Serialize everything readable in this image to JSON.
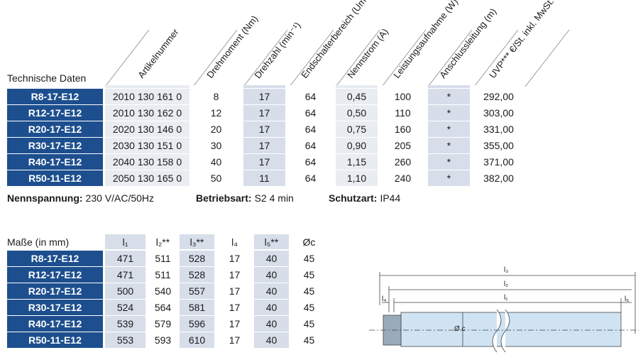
{
  "table1": {
    "title": "Technische Daten",
    "headers": [
      "Artikelnummer",
      "Drehmoment (Nm)",
      "Drehzahl (min⁻¹)",
      "Endschalterbereich (Umdrehungen)",
      "Nennstrom (A)",
      "Leistungsaufnahme (W)",
      "Anschlussleitung (m)",
      "UVP*** €/St. inkl. MwSt."
    ],
    "rows": [
      [
        "R8-17-E12",
        "2010 130 161 0",
        "8",
        "17",
        "64",
        "0,45",
        "100",
        "*",
        "292,00"
      ],
      [
        "R12-17-E12",
        "2010 130 162 0",
        "12",
        "17",
        "64",
        "0,50",
        "110",
        "*",
        "303,00"
      ],
      [
        "R20-17-E12",
        "2020 130 146 0",
        "20",
        "17",
        "64",
        "0,75",
        "160",
        "*",
        "331,00"
      ],
      [
        "R30-17-E12",
        "2030 130 151 0",
        "30",
        "17",
        "64",
        "0,90",
        "205",
        "*",
        "355,00"
      ],
      [
        "R40-17-E12",
        "2040 130 158 0",
        "40",
        "17",
        "64",
        "1,15",
        "260",
        "*",
        "371,00"
      ],
      [
        "R50-11-E12",
        "2050 130 165 0",
        "50",
        "11",
        "64",
        "1,10",
        "240",
        "*",
        "382,00"
      ]
    ]
  },
  "notes": [
    {
      "label": "Nennspannung:",
      "value": "230 V/AC/50Hz"
    },
    {
      "label": "Betriebsart:",
      "value": "S2 4 min"
    },
    {
      "label": "Schutzart:",
      "value": "IP44"
    }
  ],
  "table2": {
    "title": "Maße (in mm)",
    "headers": [
      "l₁",
      "l₂**",
      "l₃**",
      "l₄",
      "l₅**",
      "Øc"
    ],
    "rows": [
      [
        "R8-17-E12",
        "471",
        "511",
        "528",
        "17",
        "40",
        "45"
      ],
      [
        "R12-17-E12",
        "471",
        "511",
        "528",
        "17",
        "40",
        "45"
      ],
      [
        "R20-17-E12",
        "500",
        "540",
        "557",
        "17",
        "40",
        "45"
      ],
      [
        "R30-17-E12",
        "524",
        "564",
        "581",
        "17",
        "40",
        "45"
      ],
      [
        "R40-17-E12",
        "539",
        "579",
        "596",
        "17",
        "40",
        "45"
      ],
      [
        "R50-11-E12",
        "553",
        "593",
        "610",
        "17",
        "40",
        "45"
      ]
    ]
  },
  "diagram": {
    "labels": [
      "l₃",
      "l₂",
      "l₁",
      "l₄",
      "l₅",
      "Ø c"
    ]
  }
}
